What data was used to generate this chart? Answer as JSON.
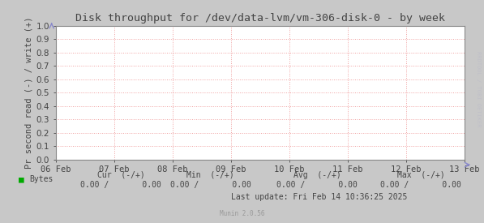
{
  "title": "Disk throughput for /dev/data-lvm/vm-306-disk-0 - by week",
  "ylabel": "Pr second read (-) / write (+)",
  "background_color": "#c8c8c8",
  "plot_bg_color": "#ffffff",
  "grid_color": "#f0a0a0",
  "border_color": "#888888",
  "title_fontsize": 9.5,
  "axis_fontsize": 7.5,
  "tick_fontsize": 7.5,
  "small_fontsize": 6.5,
  "ylim": [
    0.0,
    1.0
  ],
  "yticks": [
    0.0,
    0.1,
    0.2,
    0.3,
    0.4,
    0.5,
    0.6,
    0.7,
    0.8,
    0.9,
    1.0
  ],
  "xtick_labels": [
    "06 Feb",
    "07 Feb",
    "08 Feb",
    "09 Feb",
    "10 Feb",
    "11 Feb",
    "12 Feb",
    "13 Feb"
  ],
  "legend_label": "Bytes",
  "legend_color": "#00aa00",
  "cur_label": "Cur  (-/+)",
  "min_label": "Min  (-/+)",
  "avg_label": "Avg  (-/+)",
  "max_label": "Max  (-/+)",
  "cur_val": "0.00 /       0.00",
  "min_val": "0.00 /       0.00",
  "avg_val": "0.00 /       0.00",
  "max_val": "0.00 /       0.00",
  "last_update": "Last update: Fri Feb 14 10:36:25 2025",
  "munin_version": "Munin 2.0.56",
  "text_color": "#444444",
  "right_label_color": "#c0c0c8",
  "figsize": [
    5.97,
    2.75
  ],
  "dpi": 100
}
